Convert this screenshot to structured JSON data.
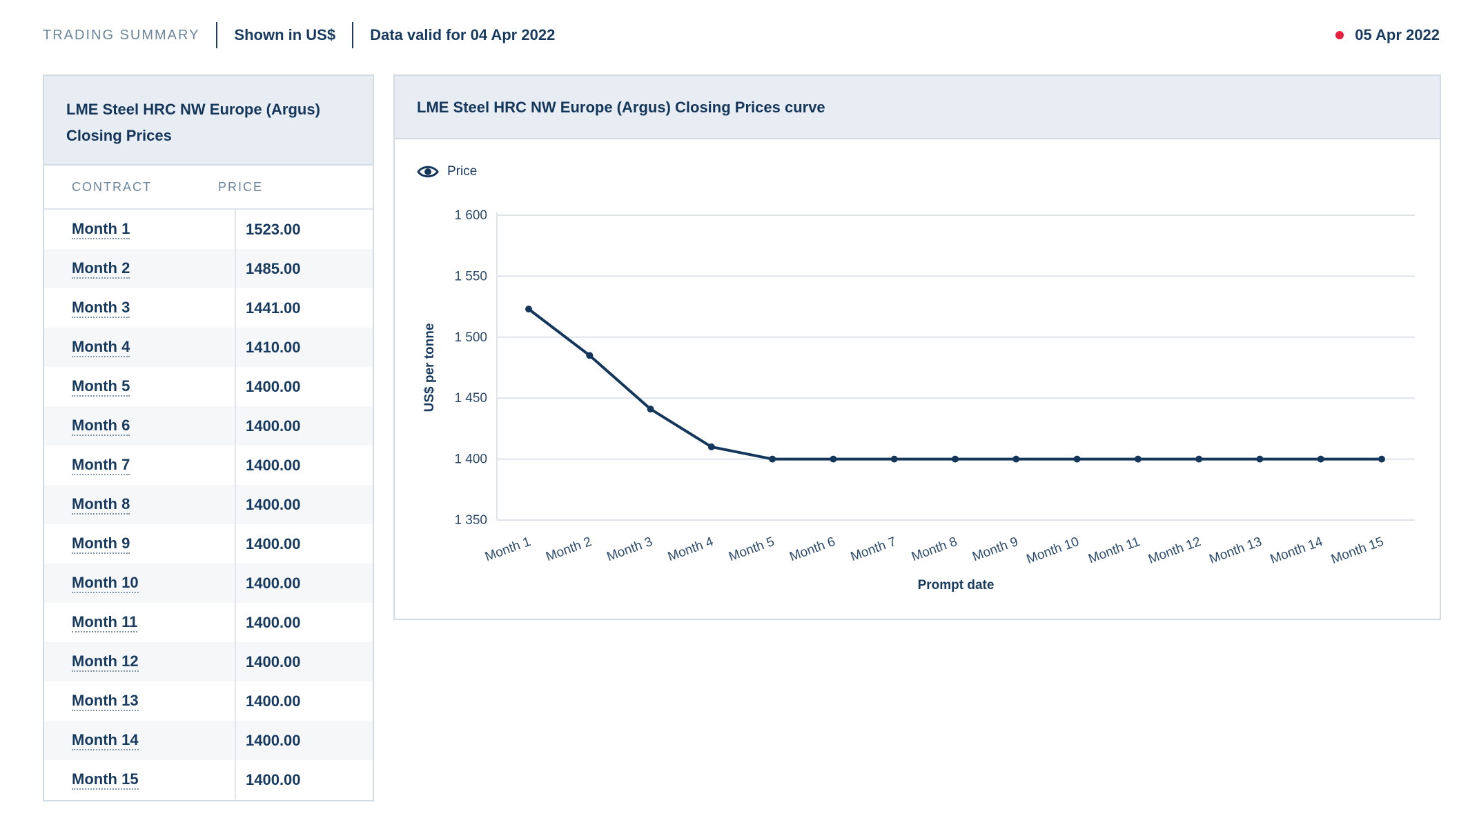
{
  "topbar": {
    "summary": "TRADING SUMMARY",
    "currency": "Shown in US$",
    "validity": "Data valid for 04 Apr 2022",
    "date": "05 Apr 2022",
    "live_dot_color": "#e5213e"
  },
  "table": {
    "title": "LME Steel HRC NW Europe (Argus) Closing Prices",
    "col_contract": "CONTRACT",
    "col_price": "PRICE",
    "rows": [
      {
        "contract": "Month 1",
        "price": "1523.00"
      },
      {
        "contract": "Month 2",
        "price": "1485.00"
      },
      {
        "contract": "Month 3",
        "price": "1441.00"
      },
      {
        "contract": "Month 4",
        "price": "1410.00"
      },
      {
        "contract": "Month 5",
        "price": "1400.00"
      },
      {
        "contract": "Month 6",
        "price": "1400.00"
      },
      {
        "contract": "Month 7",
        "price": "1400.00"
      },
      {
        "contract": "Month 8",
        "price": "1400.00"
      },
      {
        "contract": "Month 9",
        "price": "1400.00"
      },
      {
        "contract": "Month 10",
        "price": "1400.00"
      },
      {
        "contract": "Month 11",
        "price": "1400.00"
      },
      {
        "contract": "Month 12",
        "price": "1400.00"
      },
      {
        "contract": "Month 13",
        "price": "1400.00"
      },
      {
        "contract": "Month 14",
        "price": "1400.00"
      },
      {
        "contract": "Month 15",
        "price": "1400.00"
      }
    ]
  },
  "chart_panel": {
    "title": "LME Steel HRC NW Europe (Argus) Closing Prices curve",
    "legend_label": "Price",
    "legend_icon": "eye-icon"
  },
  "chart_data": {
    "type": "line",
    "categories": [
      "Month 1",
      "Month 2",
      "Month 3",
      "Month 4",
      "Month 5",
      "Month 6",
      "Month 7",
      "Month 8",
      "Month 9",
      "Month 10",
      "Month 11",
      "Month 12",
      "Month 13",
      "Month 14",
      "Month 15"
    ],
    "series": [
      {
        "name": "Price",
        "values": [
          1523,
          1485,
          1441,
          1410,
          1400,
          1400,
          1400,
          1400,
          1400,
          1400,
          1400,
          1400,
          1400,
          1400,
          1400
        ]
      }
    ],
    "ylim": [
      1350,
      1600
    ],
    "yticks": [
      1350,
      1400,
      1450,
      1500,
      1550,
      1600
    ],
    "ytick_labels": [
      "1 350",
      "1 400",
      "1 450",
      "1 500",
      "1 550",
      "1 600"
    ],
    "xlabel": "Prompt date",
    "ylabel": "US$ per tonne",
    "grid": true,
    "legend_position": "top-left",
    "line_color": "#14365a",
    "grid_color": "#dde3e8"
  }
}
